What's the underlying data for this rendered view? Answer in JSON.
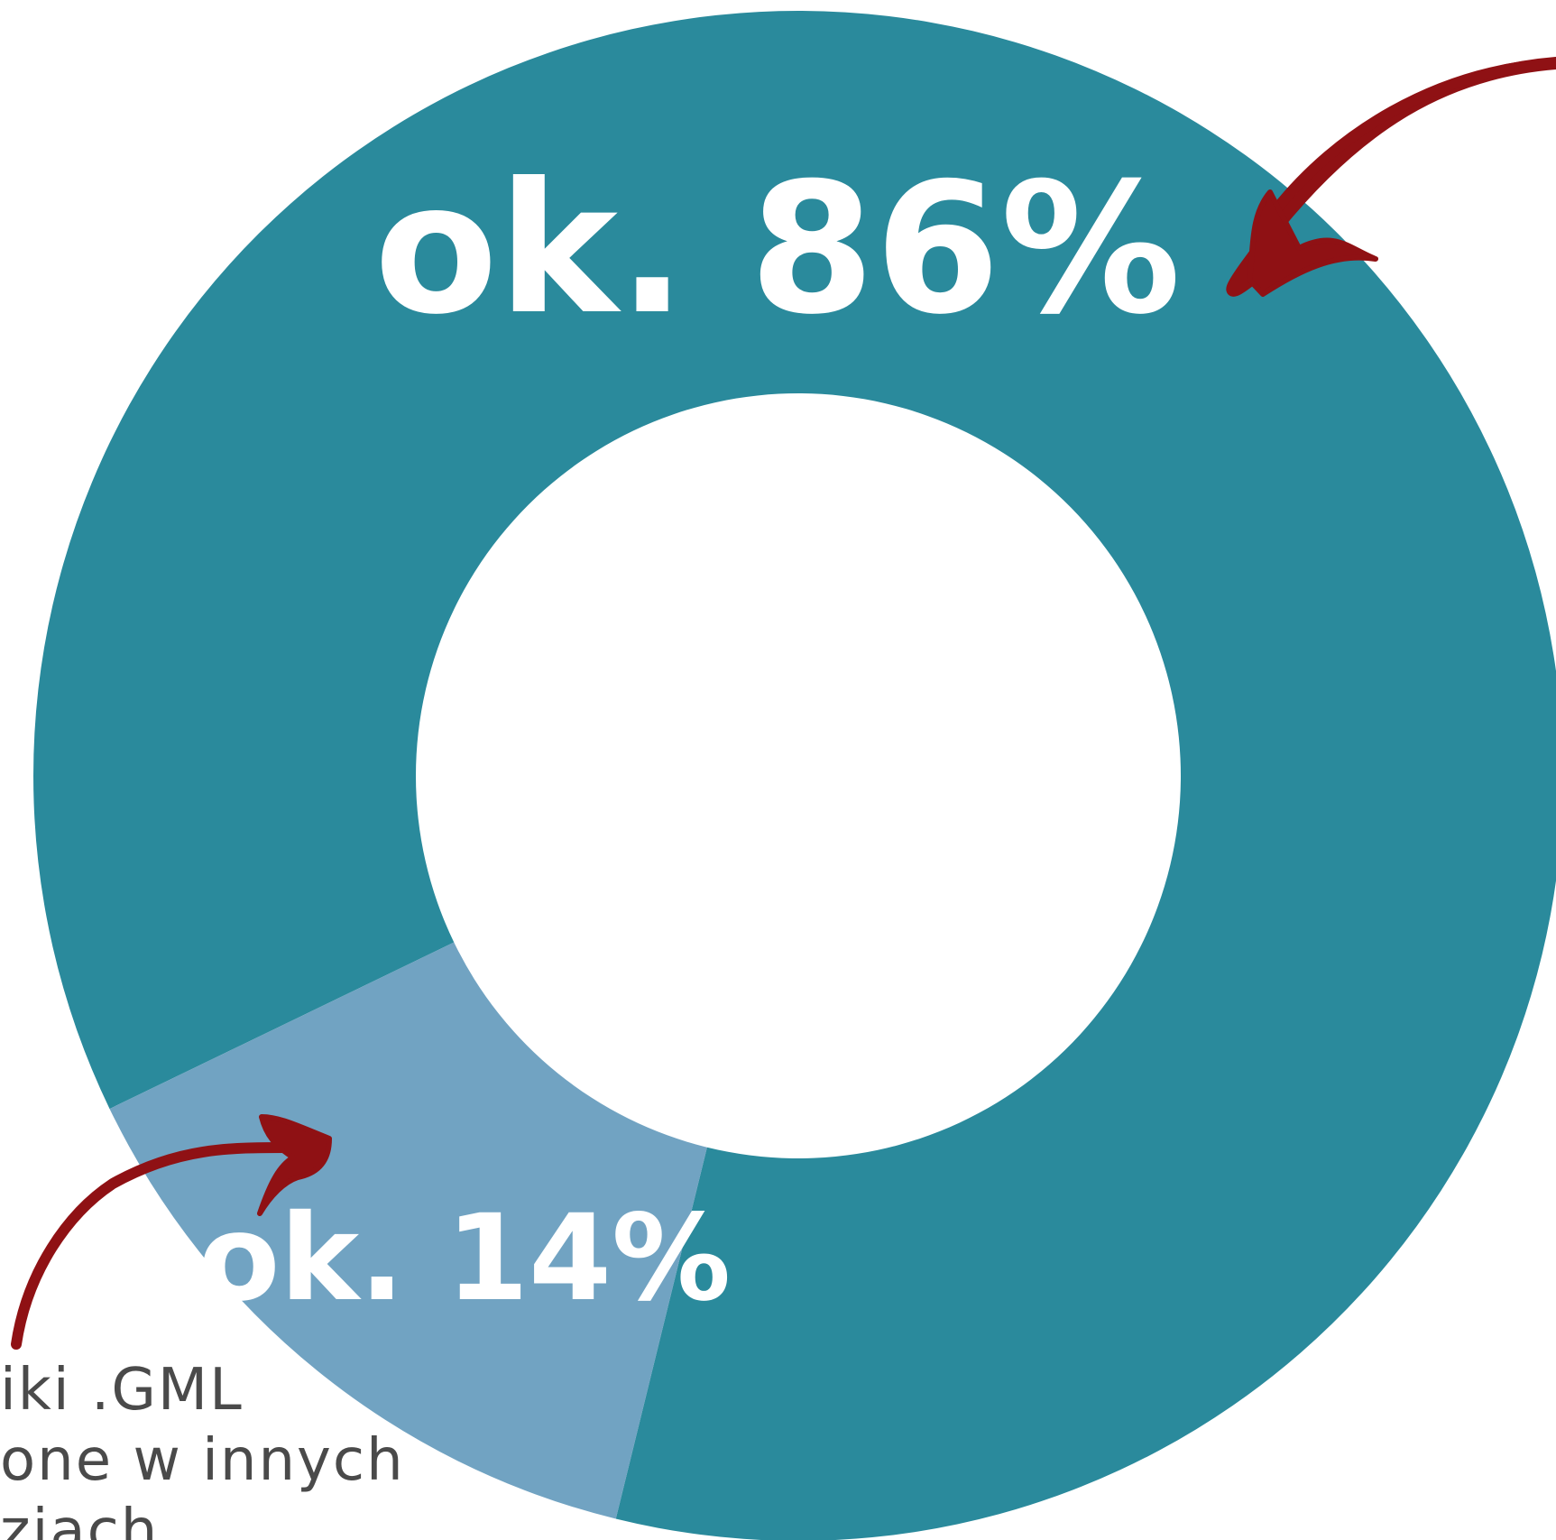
{
  "chart_data": {
    "type": "pie",
    "donut": true,
    "slices": [
      {
        "label": "ok. 86%",
        "value": 86,
        "color": "#2a8a9c"
      },
      {
        "label": "ok. 14%",
        "value": 14,
        "color": "#71a3c2"
      }
    ],
    "annotations": {
      "arrow_color": "#8f1114",
      "caption_lines": [
        "iki .GML",
        "one w innych",
        "ziach"
      ]
    }
  }
}
